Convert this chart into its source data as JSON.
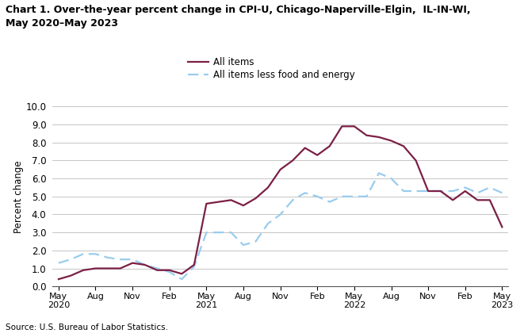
{
  "title_line1": "Chart 1. Over-the-year percent change in CPI-U, Chicago-Naperville-Elgin,  IL-IN-WI,",
  "title_line2": "May 2020–May 2023",
  "ylabel": "Percent change",
  "source": "Source: U.S. Bureau of Labor Statistics.",
  "ylim": [
    0.0,
    10.0
  ],
  "yticks": [
    0.0,
    1.0,
    2.0,
    3.0,
    4.0,
    5.0,
    6.0,
    7.0,
    8.0,
    9.0,
    10.0
  ],
  "xtick_labels": [
    "May\n2020",
    "Aug",
    "Nov",
    "Feb",
    "May\n2021",
    "Aug",
    "Nov",
    "Feb",
    "May\n2022",
    "Aug",
    "Nov",
    "Feb",
    "May\n2023"
  ],
  "all_items_color": "#7B1F45",
  "all_items_less_color": "#99CCEE",
  "legend_all_items": "All items",
  "legend_less": "All items less food and energy",
  "all_items_37": [
    0.4,
    0.6,
    0.9,
    1.0,
    1.0,
    1.0,
    1.3,
    1.2,
    0.9,
    0.9,
    0.7,
    1.2,
    4.6,
    4.7,
    4.8,
    4.5,
    4.9,
    5.5,
    6.5,
    7.0,
    7.7,
    7.3,
    7.8,
    8.9,
    8.9,
    8.4,
    8.3,
    8.1,
    7.8,
    7.0,
    5.3,
    5.3,
    4.8,
    5.3,
    4.8,
    4.8,
    3.3
  ],
  "all_items_less_37": [
    1.3,
    1.5,
    1.8,
    1.8,
    1.6,
    1.5,
    1.5,
    1.2,
    1.0,
    0.8,
    0.4,
    1.1,
    3.0,
    3.0,
    3.0,
    2.3,
    2.5,
    3.5,
    4.0,
    4.8,
    5.2,
    5.0,
    4.7,
    5.0,
    5.0,
    5.0,
    6.3,
    6.0,
    5.3,
    5.3,
    5.3,
    5.3,
    5.3,
    5.5,
    5.2,
    5.5,
    5.2
  ]
}
